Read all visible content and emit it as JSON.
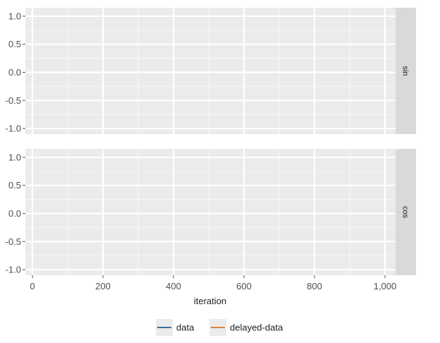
{
  "chart_data": {
    "type": "line",
    "xlabel": "iteration",
    "xlim": [
      -20,
      1030
    ],
    "ylim": [
      -1.1,
      1.15
    ],
    "x_ticks": [
      0,
      200,
      400,
      600,
      800,
      1000
    ],
    "x_tick_labels": [
      "0",
      "200",
      "400",
      "600",
      "800",
      "1,000"
    ],
    "y_ticks": [
      -1.0,
      -0.5,
      0.0,
      0.5,
      1.0
    ],
    "y_tick_labels": [
      "-1.0",
      "-0.5",
      "0.0",
      "0.5",
      "1.0"
    ],
    "grid": true,
    "legend_position": "bottom",
    "facets": [
      {
        "label": "sin"
      },
      {
        "label": "cos"
      }
    ],
    "series": [
      {
        "name": "data",
        "color": "#3b6e9a",
        "values": []
      },
      {
        "name": "delayed-data",
        "color": "#d9833b",
        "values": []
      }
    ]
  }
}
